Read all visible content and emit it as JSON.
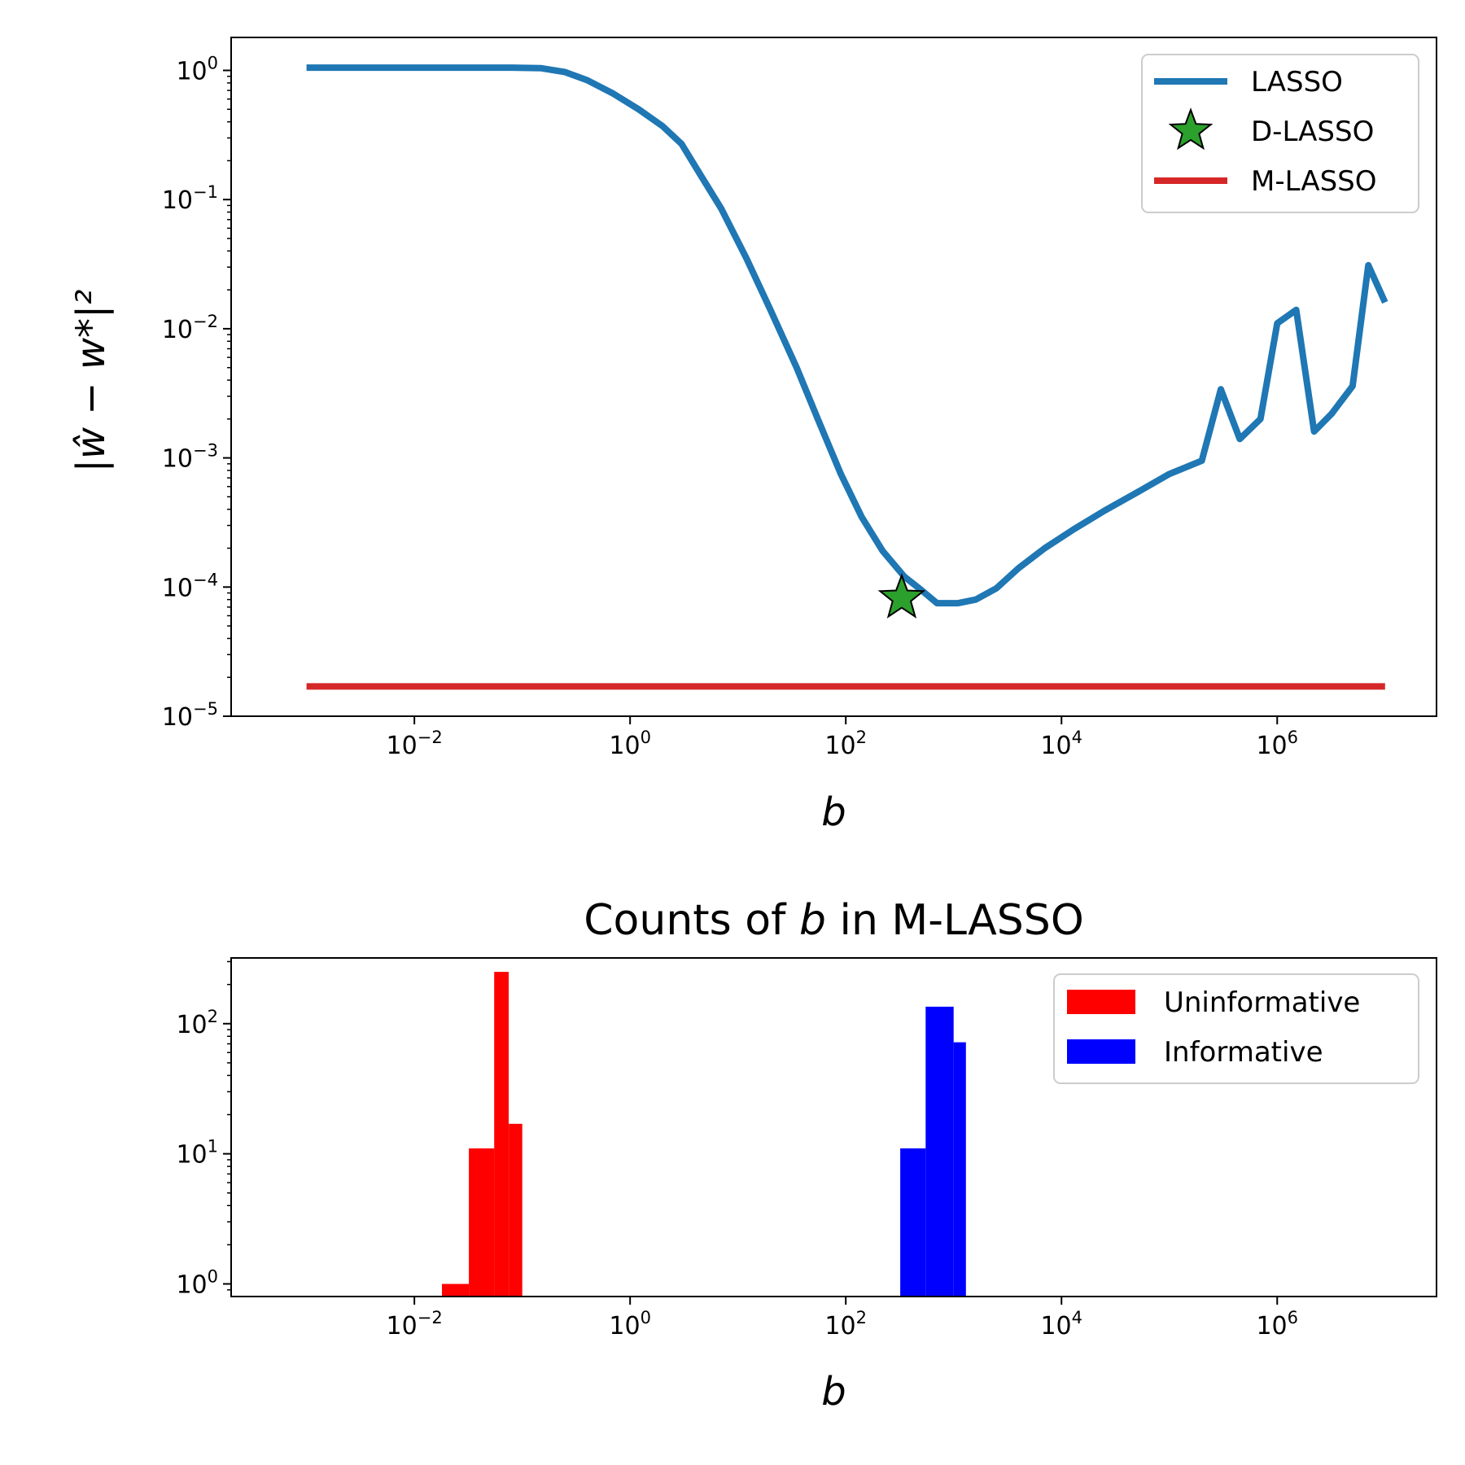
{
  "chart_data": [
    {
      "type": "line",
      "title": "",
      "xlabel": "b",
      "ylabel": "|ŵ − w*|²",
      "xscale": "log",
      "yscale": "log",
      "xlim": [
        0.0002,
        30000000
      ],
      "ylim": [
        1e-05,
        1.8
      ],
      "xticks": [
        {
          "base": "10",
          "exp": "−2",
          "value": 0.01
        },
        {
          "base": "10",
          "exp": "0",
          "value": 1
        },
        {
          "base": "10",
          "exp": "2",
          "value": 100
        },
        {
          "base": "10",
          "exp": "4",
          "value": 10000
        },
        {
          "base": "10",
          "exp": "6",
          "value": 1000000
        }
      ],
      "yticks": [
        {
          "base": "10",
          "exp": "0",
          "value": 1
        },
        {
          "base": "10",
          "exp": "−1",
          "value": 0.1
        },
        {
          "base": "10",
          "exp": "−2",
          "value": 0.01
        },
        {
          "base": "10",
          "exp": "−3",
          "value": 0.001
        },
        {
          "base": "10",
          "exp": "−4",
          "value": 0.0001
        },
        {
          "base": "10",
          "exp": "−5",
          "value": 1e-05
        }
      ],
      "grid": false,
      "legend_position": "top-right",
      "series": [
        {
          "name": "LASSO",
          "kind": "line",
          "color": "#1f77b4",
          "points": [
            [
              0.001,
              1.05
            ],
            [
              0.003,
              1.05
            ],
            [
              0.01,
              1.05
            ],
            [
              0.03,
              1.05
            ],
            [
              0.08,
              1.05
            ],
            [
              0.15,
              1.04
            ],
            [
              0.25,
              0.97
            ],
            [
              0.4,
              0.84
            ],
            [
              0.7,
              0.66
            ],
            [
              1.2,
              0.5
            ],
            [
              2.0,
              0.37
            ],
            [
              3.0,
              0.27
            ],
            [
              4.5,
              0.155
            ],
            [
              7.0,
              0.085
            ],
            [
              12,
              0.035
            ],
            [
              20,
              0.014
            ],
            [
              35,
              0.005
            ],
            [
              55,
              0.002
            ],
            [
              90,
              0.00075
            ],
            [
              140,
              0.00035
            ],
            [
              220,
              0.00019
            ],
            [
              350,
              0.00012
            ],
            [
              500,
              9.5e-05
            ],
            [
              700,
              7.5e-05
            ],
            [
              1100,
              7.5e-05
            ],
            [
              1600,
              8e-05
            ],
            [
              2500,
              9.8e-05
            ],
            [
              4000,
              0.00014
            ],
            [
              7000,
              0.0002
            ],
            [
              13000,
              0.00028
            ],
            [
              25000,
              0.00039
            ],
            [
              50000,
              0.00054
            ],
            [
              100000,
              0.00075
            ],
            [
              200000,
              0.00095
            ],
            [
              300000,
              0.0034
            ],
            [
              450000,
              0.0014
            ],
            [
              700000,
              0.002
            ],
            [
              1000000,
              0.011
            ],
            [
              1500000,
              0.014
            ],
            [
              2200000,
              0.0016
            ],
            [
              3200000,
              0.0022
            ],
            [
              5000000,
              0.0036
            ],
            [
              7000000,
              0.031
            ],
            [
              10000000,
              0.016
            ]
          ]
        },
        {
          "name": "D-LASSO",
          "kind": "marker",
          "marker": "star",
          "color": "#2ca02c",
          "points": [
            [
              330,
              8.2e-05
            ]
          ]
        },
        {
          "name": "M-LASSO",
          "kind": "line",
          "color": "#d62728",
          "points": [
            [
              0.001,
              1.7e-05
            ],
            [
              10000000,
              1.7e-05
            ]
          ]
        }
      ]
    },
    {
      "type": "bar",
      "subtype": "histogram",
      "title": "Counts of b in M-LASSO",
      "title_prefix": "Counts of ",
      "title_var": "b",
      "title_suffix": " in M-LASSO",
      "xlabel": "b",
      "ylabel": "",
      "xscale": "log",
      "yscale": "log",
      "xlim": [
        0.0002,
        30000000
      ],
      "ylim": [
        0.8,
        320
      ],
      "xticks": [
        {
          "base": "10",
          "exp": "−2",
          "value": 0.01
        },
        {
          "base": "10",
          "exp": "0",
          "value": 1
        },
        {
          "base": "10",
          "exp": "2",
          "value": 100
        },
        {
          "base": "10",
          "exp": "4",
          "value": 10000
        },
        {
          "base": "10",
          "exp": "6",
          "value": 1000000
        }
      ],
      "yticks": [
        {
          "base": "10",
          "exp": "0",
          "value": 1
        },
        {
          "base": "10",
          "exp": "1",
          "value": 10
        },
        {
          "base": "10",
          "exp": "2",
          "value": 100
        }
      ],
      "grid": false,
      "legend_position": "top-right",
      "series": [
        {
          "name": "Uninformative",
          "color": "#ff0000",
          "bins": [
            {
              "x0": 0.018,
              "x1": 0.032,
              "count": 1
            },
            {
              "x0": 0.032,
              "x1": 0.055,
              "count": 11
            },
            {
              "x0": 0.055,
              "x1": 0.075,
              "count": 250
            },
            {
              "x0": 0.075,
              "x1": 0.1,
              "count": 17
            }
          ]
        },
        {
          "name": "Informative",
          "color": "#0000ff",
          "bins": [
            {
              "x0": 320,
              "x1": 550,
              "count": 11
            },
            {
              "x0": 550,
              "x1": 1000,
              "count": 135
            },
            {
              "x0": 1000,
              "x1": 1300,
              "count": 72
            }
          ]
        }
      ]
    }
  ]
}
